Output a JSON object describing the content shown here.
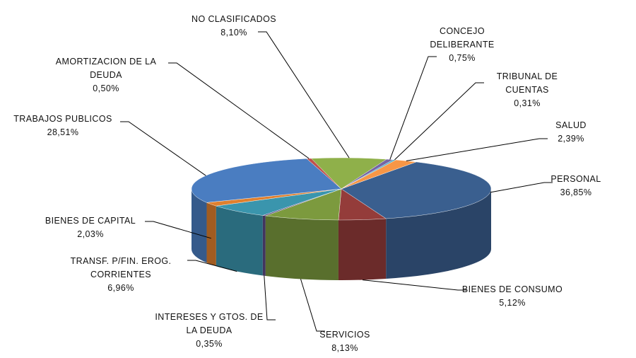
{
  "chart_data": {
    "type": "pie",
    "title": "",
    "three_d": true,
    "unit": "%",
    "slices": [
      {
        "label": [
          "PERSONAL"
        ],
        "value_label": "36,85%",
        "value": 36.85,
        "color": "#3a5f8f"
      },
      {
        "label": [
          "BIENES DE CONSUMO"
        ],
        "value_label": "5,12%",
        "value": 5.12,
        "color": "#943c3a"
      },
      {
        "label": [
          "SERVICIOS"
        ],
        "value_label": "8,13%",
        "value": 8.13,
        "color": "#7c9a3e"
      },
      {
        "label": [
          "INTERESES Y GTOS. DE",
          "LA DEUDA"
        ],
        "value_label": "0,35%",
        "value": 0.35,
        "color": "#5b4a82"
      },
      {
        "label": [
          "TRANSF. P/FIN. EROG.",
          "CORRIENTES"
        ],
        "value_label": "6,96%",
        "value": 6.96,
        "color": "#3a95ad"
      },
      {
        "label": [
          "BIENES DE CAPITAL"
        ],
        "value_label": "2,03%",
        "value": 2.03,
        "color": "#e0802e"
      },
      {
        "label": [
          "TRABAJOS PUBLICOS"
        ],
        "value_label": "28,51%",
        "value": 28.51,
        "color": "#4a7dc1"
      },
      {
        "label": [
          "AMORTIZACION DE LA",
          "DEUDA"
        ],
        "value_label": "0,50%",
        "value": 0.5,
        "color": "#c0504d"
      },
      {
        "label": [
          "NO CLASIFICADOS"
        ],
        "value_label": "8,10%",
        "value": 8.1,
        "color": "#8fb04a"
      },
      {
        "label": [
          "CONCEJO",
          "DELIBERANTE"
        ],
        "value_label": "0,75%",
        "value": 0.75,
        "color": "#7565a5"
      },
      {
        "label": [
          "TRIBUNAL DE",
          "CUENTAS"
        ],
        "value_label": "0,31%",
        "value": 0.31,
        "color": "#4bacc6"
      },
      {
        "label": [
          "SALUD"
        ],
        "value_label": "2,39%",
        "value": 2.39,
        "color": "#f79646"
      }
    ]
  }
}
